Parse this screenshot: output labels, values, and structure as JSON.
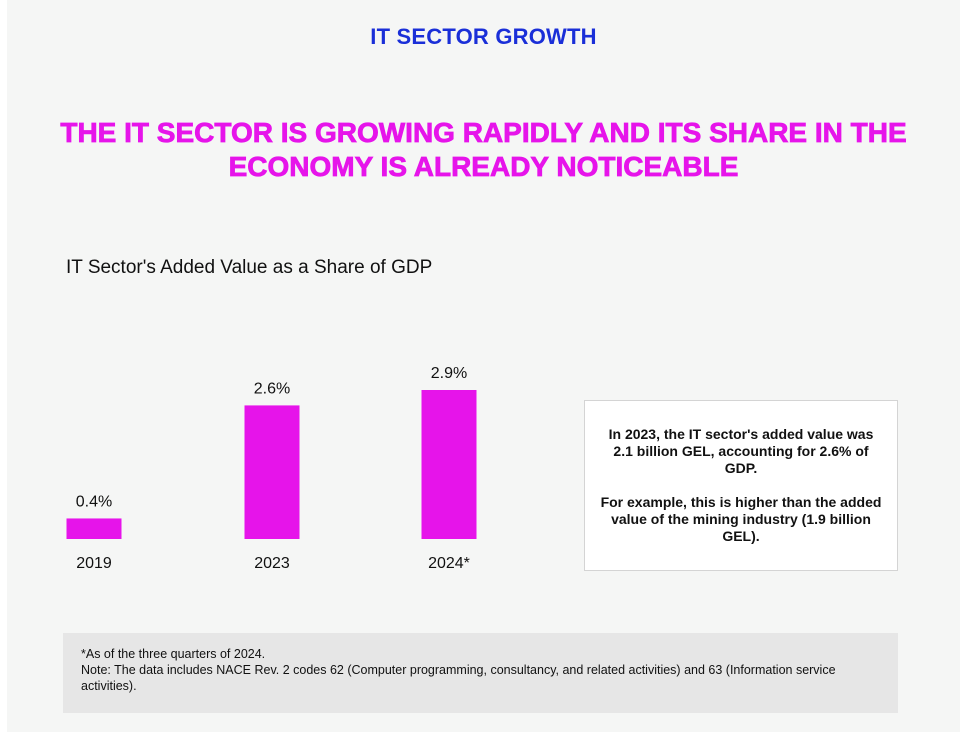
{
  "header": {
    "title": "IT SECTOR GROWTH"
  },
  "headline": "THE IT SECTOR IS GROWING RAPIDLY AND ITS SHARE IN THE ECONOMY IS ALREADY NOTICEABLE",
  "colors": {
    "accent": "#e614ea",
    "header_blue": "#1a2fd8",
    "background": "#f5f6f5"
  },
  "chart_data": {
    "type": "bar",
    "title": "IT Sector's Added Value as a Share of GDP",
    "categories": [
      "2019",
      "2023",
      "2024*"
    ],
    "values": [
      0.4,
      2.6,
      2.9
    ],
    "value_labels": [
      "0.4%",
      "2.6%",
      "2.9%"
    ],
    "xlabel": "",
    "ylabel": "",
    "ylim": [
      0,
      2.9
    ],
    "grid": false,
    "legend": "none"
  },
  "infobox": {
    "paragraph1": "In 2023, the IT sector's added value was 2.1 billion GEL, accounting for 2.6% of GDP.",
    "paragraph2": "For example, this is higher than the added value of the mining industry (1.9 billion GEL)."
  },
  "footnote": {
    "line1": "*As of the three quarters of 2024.",
    "line2": "Note: The data includes NACE Rev. 2 codes 62 (Computer programming, consultancy, and related activities) and 63 (Information service activities)."
  }
}
